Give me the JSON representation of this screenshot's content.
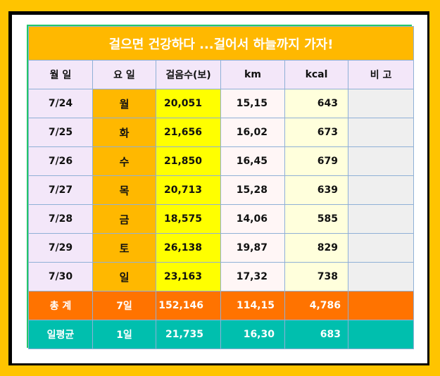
{
  "title": "걸으면 건강하다 ...걸어서 하늘까지 가자!",
  "headers": [
    "월 일",
    "요 일",
    "걸음수(보)",
    "km",
    "kcal",
    "비 고"
  ],
  "rows": [
    {
      "date": "7/24",
      "day": "월",
      "steps": "20,051",
      "km": "15,15",
      "kcal": "643",
      "note": ""
    },
    {
      "date": "7/25",
      "day": "화",
      "steps": "21,656",
      "km": "16,02",
      "kcal": "673",
      "note": ""
    },
    {
      "date": "7/26",
      "day": "수",
      "steps": "21,850",
      "km": "16,45",
      "kcal": "679",
      "note": ""
    },
    {
      "date": "7/27",
      "day": "목",
      "steps": "20,713",
      "km": "15,28",
      "kcal": "639",
      "note": ""
    },
    {
      "date": "7/28",
      "day": "금",
      "steps": "18,575",
      "km": "14,06",
      "kcal": "585",
      "note": ""
    },
    {
      "date": "7/29",
      "day": "토",
      "steps": "26,138",
      "km": "19,87",
      "kcal": "829",
      "note": ""
    },
    {
      "date": "7/30",
      "day": "일",
      "steps": "23,163",
      "km": "17,32",
      "kcal": "738",
      "note": ""
    }
  ],
  "total": {
    "label": "총 계",
    "count": "7일",
    "steps": "152,146",
    "km": "114,15",
    "kcal": "4,786",
    "note": ""
  },
  "average": {
    "label": "일평균",
    "count": "1일",
    "steps": "21,735",
    "km": "16,30",
    "kcal": "683",
    "note": ""
  },
  "colors": {
    "background": "#ffc400",
    "title_bg": "#ffb800",
    "header_bg": "#f3e7f9",
    "steps_bg": "#ffff00",
    "total_bg": "#ff7300",
    "average_bg": "#00bfae",
    "border": "#22c76a"
  }
}
